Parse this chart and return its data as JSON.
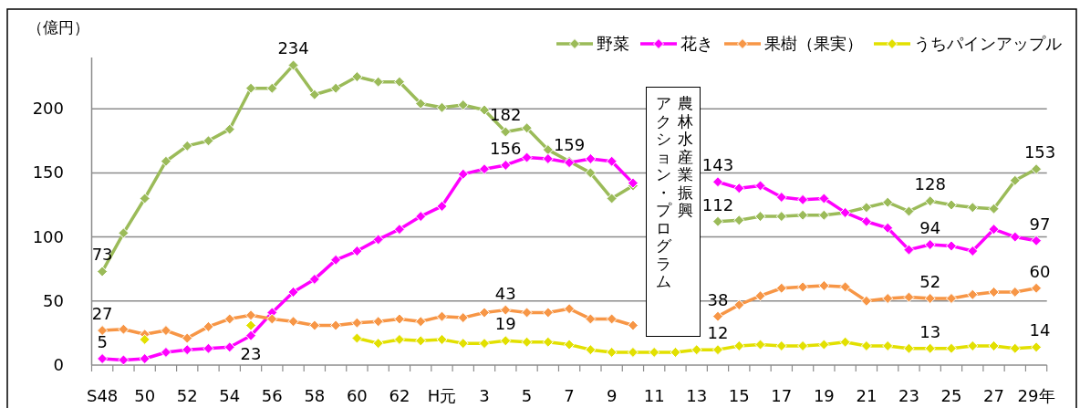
{
  "chart_data": {
    "type": "line",
    "ylabel": "（億円）",
    "ylim": [
      0,
      240
    ],
    "yticks": [
      0,
      50,
      100,
      150,
      200
    ],
    "grid": "y",
    "legend": "top right",
    "marker": "diamond",
    "categories": [
      "S48",
      null,
      "50",
      null,
      "52",
      null,
      "54",
      null,
      "56",
      null,
      "58",
      null,
      "60",
      null,
      "62",
      null,
      "H元",
      null,
      "3",
      null,
      "5",
      null,
      "7",
      null,
      "9",
      null,
      "11",
      null,
      "13",
      null,
      "15",
      null,
      "17",
      null,
      "19",
      null,
      "21",
      null,
      "23",
      null,
      "25",
      null,
      "27",
      null,
      "29年"
    ],
    "annotations": [
      "農林水産業振興",
      "アクション・プログラム"
    ],
    "series": [
      {
        "name": "野菜",
        "color": "#9bbb59",
        "values": [
          73,
          103,
          130,
          159,
          171,
          175,
          184,
          216,
          216,
          234,
          211,
          216,
          225,
          221,
          221,
          204,
          201,
          203,
          199,
          182,
          185,
          168,
          159,
          150,
          130,
          140,
          null,
          null,
          null,
          112,
          113,
          116,
          116,
          117,
          117,
          119,
          123,
          127,
          120,
          128,
          125,
          123,
          122,
          144,
          153
        ],
        "value_labels": [
          "73",
          null,
          null,
          null,
          null,
          null,
          null,
          null,
          null,
          "234",
          null,
          null,
          null,
          null,
          null,
          null,
          null,
          null,
          null,
          "182",
          null,
          null,
          "159",
          null,
          null,
          null,
          null,
          null,
          null,
          "112",
          null,
          null,
          null,
          null,
          null,
          null,
          null,
          null,
          null,
          "128",
          null,
          null,
          null,
          null,
          "153"
        ]
      },
      {
        "name": "花き",
        "color": "#ff00ff",
        "values": [
          5,
          4,
          5,
          10,
          12,
          13,
          14,
          23,
          41,
          57,
          67,
          82,
          89,
          98,
          106,
          116,
          124,
          149,
          153,
          156,
          162,
          161,
          158,
          161,
          159,
          142,
          null,
          null,
          null,
          143,
          138,
          140,
          131,
          129,
          130,
          119,
          112,
          107,
          90,
          94,
          93,
          89,
          106,
          100,
          97
        ],
        "value_labels": [
          "5",
          null,
          null,
          null,
          null,
          null,
          null,
          "23",
          null,
          null,
          null,
          null,
          null,
          null,
          null,
          null,
          null,
          null,
          null,
          "156",
          null,
          null,
          null,
          null,
          null,
          null,
          null,
          null,
          null,
          "143",
          null,
          null,
          null,
          null,
          null,
          null,
          null,
          null,
          null,
          "94",
          null,
          null,
          null,
          null,
          "97"
        ]
      },
      {
        "name": "果樹（果実）",
        "color": "#f79646",
        "values": [
          27,
          28,
          24,
          27,
          21,
          30,
          36,
          39,
          36,
          34,
          31,
          31,
          33,
          34,
          36,
          34,
          38,
          37,
          41,
          43,
          41,
          41,
          44,
          36,
          36,
          31,
          null,
          null,
          null,
          38,
          47,
          54,
          60,
          61,
          62,
          61,
          50,
          52,
          53,
          52,
          52,
          55,
          57,
          57,
          60
        ],
        "value_labels": [
          "27",
          null,
          null,
          null,
          null,
          null,
          null,
          null,
          null,
          null,
          null,
          null,
          null,
          null,
          null,
          null,
          null,
          null,
          null,
          "43",
          null,
          null,
          null,
          null,
          null,
          null,
          null,
          null,
          null,
          "38",
          null,
          null,
          null,
          null,
          null,
          null,
          null,
          null,
          null,
          "52",
          null,
          null,
          null,
          null,
          "60"
        ]
      },
      {
        "name": "うちパインアップル",
        "color": "#e2e000",
        "values": [
          null,
          null,
          20,
          null,
          null,
          null,
          null,
          31,
          null,
          null,
          null,
          null,
          21,
          17,
          20,
          19,
          20,
          17,
          17,
          19,
          18,
          18,
          16,
          12,
          10,
          10,
          10,
          10,
          12,
          12,
          15,
          16,
          15,
          15,
          16,
          18,
          15,
          15,
          13,
          13,
          13,
          15,
          15,
          13,
          14
        ],
        "value_labels": [
          null,
          null,
          null,
          null,
          null,
          null,
          null,
          null,
          null,
          null,
          null,
          null,
          null,
          null,
          null,
          null,
          null,
          null,
          null,
          "19",
          null,
          null,
          null,
          null,
          null,
          null,
          null,
          null,
          null,
          "12",
          null,
          null,
          null,
          null,
          null,
          null,
          null,
          null,
          null,
          "13",
          null,
          null,
          null,
          null,
          "14"
        ]
      }
    ]
  }
}
